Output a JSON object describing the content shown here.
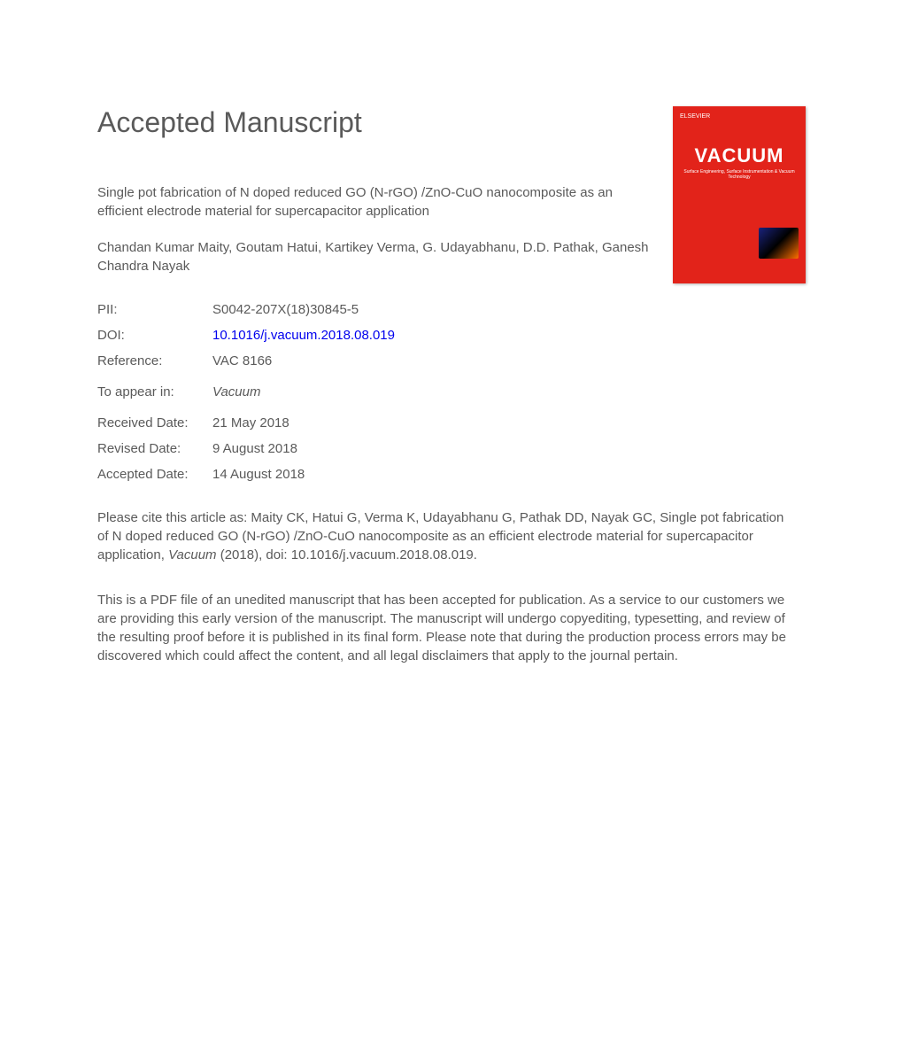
{
  "heading": "Accepted Manuscript",
  "cover": {
    "publisher": "ELSEVIER",
    "journal_title": "VACUUM",
    "journal_subtitle": "Surface Engineering, Surface Instrumentation & Vacuum Technology",
    "background_color": "#e2231a",
    "text_color": "#ffffff"
  },
  "article_title": "Single pot fabrication of N doped reduced GO (N-rGO) /ZnO-CuO nanocomposite as an efficient electrode material for supercapacitor application",
  "authors": "Chandan Kumar Maity, Goutam Hatui, Kartikey Verma, G. Udayabhanu, D.D. Pathak, Ganesh Chandra Nayak",
  "meta": {
    "pii": {
      "label": "PII:",
      "value": "S0042-207X(18)30845-5"
    },
    "doi": {
      "label": "DOI:",
      "value": "10.1016/j.vacuum.2018.08.019"
    },
    "reference": {
      "label": "Reference:",
      "value": "VAC 8166"
    },
    "appear": {
      "label": "To appear in:",
      "value": "Vacuum"
    },
    "received": {
      "label": "Received Date:",
      "value": "21 May 2018"
    },
    "revised": {
      "label": "Revised Date:",
      "value": "9 August 2018"
    },
    "accepted": {
      "label": "Accepted Date:",
      "value": "14 August 2018"
    }
  },
  "citation": {
    "prefix": "Please cite this article as: Maity CK, Hatui G, Verma K, Udayabhanu G, Pathak DD, Nayak GC, Single pot fabrication of N doped reduced GO (N-rGO) /ZnO-CuO nanocomposite as an efficient electrode material for supercapacitor application, ",
    "journal": "Vacuum",
    "suffix": " (2018), doi: 10.1016/j.vacuum.2018.08.019."
  },
  "disclaimer": "This is a PDF file of an unedited manuscript that has been accepted for publication. As a service to our customers we are providing this early version of the manuscript. The manuscript will undergo copyediting, typesetting, and review of the resulting proof before it is published in its final form. Please note that during the production process errors may be discovered which could affect the content, and all legal disclaimers that apply to the journal pertain.",
  "colors": {
    "text": "#5a5a5a",
    "link": "#0000ee",
    "background": "#ffffff"
  },
  "typography": {
    "heading_fontsize": 32,
    "body_fontsize": 15,
    "font_family": "Arial"
  }
}
